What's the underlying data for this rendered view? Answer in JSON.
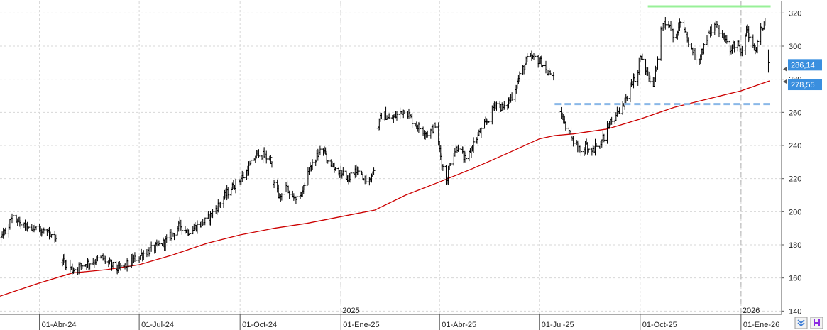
{
  "chart_data": {
    "type": "line",
    "title": "",
    "xlabel": "",
    "ylabel": "",
    "ylim": [
      138,
      327
    ],
    "y_ticks": [
      140,
      160,
      180,
      200,
      220,
      240,
      260,
      280,
      300,
      320
    ],
    "y_tick_labels": [
      "140",
      "160",
      "180",
      "200",
      "220",
      "240",
      "260",
      "280",
      "300",
      "320"
    ],
    "x_range": [
      "2024-02-25",
      "2026-02-07"
    ],
    "x_ticks": [
      {
        "date": "2024-04-01",
        "label": "01-Abr-24"
      },
      {
        "date": "2024-07-01",
        "label": "01-Jul-24"
      },
      {
        "date": "2024-10-01",
        "label": "01-Oct-24"
      },
      {
        "date": "2025-01-01",
        "label": "01-Ene-25"
      },
      {
        "date": "2025-04-01",
        "label": "01-Abr-25"
      },
      {
        "date": "2025-07-01",
        "label": "01-Jul-25"
      },
      {
        "date": "2025-10-01",
        "label": "01-Oct-25"
      },
      {
        "date": "2026-01-01",
        "label": "01-Ene-26"
      }
    ],
    "year_markers": [
      {
        "date": "2025-01-01",
        "label": "2025"
      },
      {
        "date": "2026-01-01",
        "label": "2026"
      }
    ],
    "grid": true,
    "price_series": {
      "style": "ohlc-bars",
      "color": "#000000",
      "close": [
        [
          "2024-02-26",
          184
        ],
        [
          "2024-03-04",
          192
        ],
        [
          "2024-03-08",
          198
        ],
        [
          "2024-03-15",
          193
        ],
        [
          "2024-03-22",
          191
        ],
        [
          "2024-04-01",
          190
        ],
        [
          "2024-04-08",
          187
        ],
        [
          "2024-04-12",
          184
        ],
        [
          "2024-04-16",
          182
        ],
        [
          "2024-04-22",
          171
        ],
        [
          "2024-05-01",
          165
        ],
        [
          "2024-05-10",
          168
        ],
        [
          "2024-05-20",
          170
        ],
        [
          "2024-05-28",
          172
        ],
        [
          "2024-06-05",
          168
        ],
        [
          "2024-06-12",
          165
        ],
        [
          "2024-06-20",
          168
        ],
        [
          "2024-06-28",
          172
        ],
        [
          "2024-07-05",
          175
        ],
        [
          "2024-07-15",
          178
        ],
        [
          "2024-07-25",
          182
        ],
        [
          "2024-08-01",
          187
        ],
        [
          "2024-08-07",
          192
        ],
        [
          "2024-08-14",
          188
        ],
        [
          "2024-08-22",
          191
        ],
        [
          "2024-09-01",
          195
        ],
        [
          "2024-09-10",
          203
        ],
        [
          "2024-09-20",
          212
        ],
        [
          "2024-09-28",
          218
        ],
        [
          "2024-10-05",
          222
        ],
        [
          "2024-10-12",
          230
        ],
        [
          "2024-10-18",
          236
        ],
        [
          "2024-10-24",
          233
        ],
        [
          "2024-10-30",
          232
        ],
        [
          "2024-11-01",
          219
        ],
        [
          "2024-11-06",
          208
        ],
        [
          "2024-11-12",
          214
        ],
        [
          "2024-11-18",
          210
        ],
        [
          "2024-11-24",
          207
        ],
        [
          "2024-11-30",
          218
        ],
        [
          "2024-12-05",
          228
        ],
        [
          "2024-12-10",
          233
        ],
        [
          "2024-12-15",
          237
        ],
        [
          "2024-12-20",
          231
        ],
        [
          "2024-12-26",
          225
        ],
        [
          "2025-01-01",
          223
        ],
        [
          "2025-01-08",
          220
        ],
        [
          "2025-01-15",
          224
        ],
        [
          "2025-01-22",
          219
        ],
        [
          "2025-01-28",
          222
        ],
        [
          "2025-02-02",
          226
        ],
        [
          "2025-02-04",
          252
        ],
        [
          "2025-02-08",
          260
        ],
        [
          "2025-02-15",
          255
        ],
        [
          "2025-02-22",
          259
        ],
        [
          "2025-03-01",
          262
        ],
        [
          "2025-03-08",
          254
        ],
        [
          "2025-03-15",
          250
        ],
        [
          "2025-03-22",
          247
        ],
        [
          "2025-03-28",
          252
        ],
        [
          "2025-04-03",
          230
        ],
        [
          "2025-04-07",
          218
        ],
        [
          "2025-04-12",
          234
        ],
        [
          "2025-04-18",
          240
        ],
        [
          "2025-04-25",
          230
        ],
        [
          "2025-05-01",
          240
        ],
        [
          "2025-05-08",
          248
        ],
        [
          "2025-05-15",
          255
        ],
        [
          "2025-05-22",
          266
        ],
        [
          "2025-05-30",
          262
        ],
        [
          "2025-06-06",
          270
        ],
        [
          "2025-06-13",
          282
        ],
        [
          "2025-06-20",
          292
        ],
        [
          "2025-06-27",
          293
        ],
        [
          "2025-07-03",
          290
        ],
        [
          "2025-07-09",
          283
        ],
        [
          "2025-07-14",
          284
        ],
        [
          "2025-07-20",
          262
        ],
        [
          "2025-07-25",
          252
        ],
        [
          "2025-07-31",
          244
        ],
        [
          "2025-08-06",
          237
        ],
        [
          "2025-08-12",
          240
        ],
        [
          "2025-08-19",
          238
        ],
        [
          "2025-08-26",
          241
        ],
        [
          "2025-09-02",
          252
        ],
        [
          "2025-09-09",
          258
        ],
        [
          "2025-09-16",
          264
        ],
        [
          "2025-09-22",
          276
        ],
        [
          "2025-09-28",
          282
        ],
        [
          "2025-10-02",
          296
        ],
        [
          "2025-10-08",
          283
        ],
        [
          "2025-10-13",
          278
        ],
        [
          "2025-10-16",
          286
        ],
        [
          "2025-10-20",
          312
        ],
        [
          "2025-10-25",
          316
        ],
        [
          "2025-10-30",
          308
        ],
        [
          "2025-11-03",
          303
        ],
        [
          "2025-11-08",
          318
        ],
        [
          "2025-11-12",
          306
        ],
        [
          "2025-11-17",
          298
        ],
        [
          "2025-11-22",
          291
        ],
        [
          "2025-11-28",
          300
        ],
        [
          "2025-12-04",
          310
        ],
        [
          "2025-12-10",
          312
        ],
        [
          "2025-12-16",
          305
        ],
        [
          "2025-12-22",
          298
        ],
        [
          "2025-12-28",
          303
        ],
        [
          "2026-01-02",
          296
        ],
        [
          "2026-01-06",
          312
        ],
        [
          "2026-01-10",
          300
        ],
        [
          "2026-01-15",
          298
        ],
        [
          "2026-01-19",
          310
        ],
        [
          "2026-01-23",
          314
        ],
        [
          "2026-01-26",
          290
        ]
      ],
      "gaps_after": [
        "2024-04-16",
        "2024-10-30",
        "2025-02-02",
        "2025-07-14"
      ]
    },
    "moving_average": {
      "color": "#cc0000",
      "points": [
        [
          "2024-02-25",
          149
        ],
        [
          "2024-04-01",
          157
        ],
        [
          "2024-05-01",
          163
        ],
        [
          "2024-06-01",
          165
        ],
        [
          "2024-07-01",
          168
        ],
        [
          "2024-08-01",
          174
        ],
        [
          "2024-09-01",
          181
        ],
        [
          "2024-10-01",
          186
        ],
        [
          "2024-11-01",
          190
        ],
        [
          "2024-12-01",
          193
        ],
        [
          "2025-01-01",
          197
        ],
        [
          "2025-02-01",
          201
        ],
        [
          "2025-03-01",
          210
        ],
        [
          "2025-04-01",
          218
        ],
        [
          "2025-05-01",
          226
        ],
        [
          "2025-06-01",
          235
        ],
        [
          "2025-07-01",
          244
        ],
        [
          "2025-07-15",
          246
        ],
        [
          "2025-08-01",
          247
        ],
        [
          "2025-09-01",
          250
        ],
        [
          "2025-10-01",
          256
        ],
        [
          "2025-11-01",
          263
        ],
        [
          "2025-12-01",
          268
        ],
        [
          "2026-01-01",
          273
        ],
        [
          "2026-01-27",
          279
        ]
      ]
    },
    "horizontal_lines": [
      {
        "y": 324,
        "color": "#98f098",
        "style": "solid",
        "from": "2025-10-08",
        "to": "2026-01-28"
      },
      {
        "y": 265,
        "color": "#8ab8e8",
        "style": "dashed",
        "from": "2025-07-15",
        "to": "2026-01-28"
      }
    ],
    "price_tags": [
      {
        "value": 286.14,
        "label": "286,14",
        "color": "#3a8fdf"
      },
      {
        "value": 278.55,
        "label": "278,55",
        "color": "#3a8fdf"
      }
    ]
  },
  "toolbar": {
    "buttons": [
      {
        "icon": "chevrons-down-icon",
        "color": "#3a7bd5"
      },
      {
        "icon": "h-icon",
        "color": "#8a2be2"
      }
    ]
  }
}
